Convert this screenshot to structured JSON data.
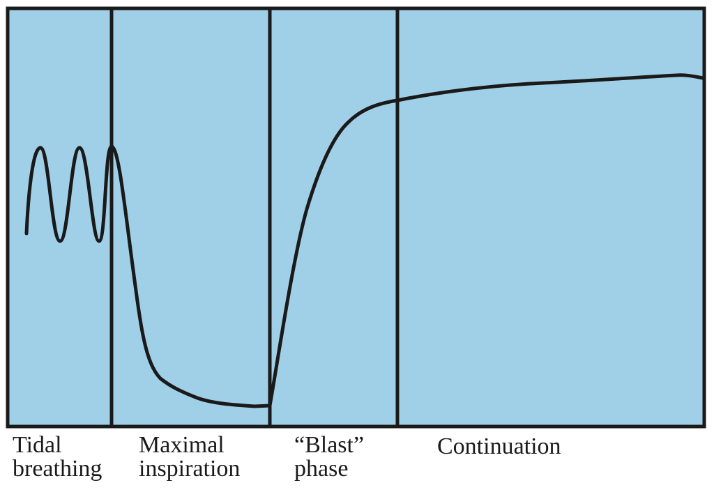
{
  "colors": {
    "panel_fill": "#a0d0e8",
    "ink": "#1a1a1a",
    "background": "#ffffff"
  },
  "phases": [
    {
      "id": "tidal",
      "lines": [
        "Tidal",
        "breathing"
      ]
    },
    {
      "id": "maximal",
      "lines": [
        "Maximal",
        "inspiration"
      ]
    },
    {
      "id": "blast",
      "lines": [
        "“Blast”",
        "phase"
      ]
    },
    {
      "id": "continuation",
      "lines": [
        "Continuation"
      ]
    }
  ]
}
